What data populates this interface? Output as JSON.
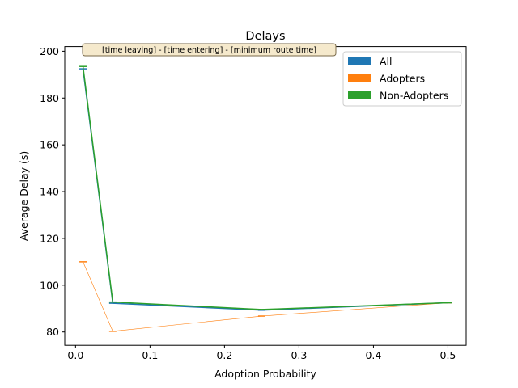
{
  "chart_data": {
    "type": "line",
    "title": "Delays",
    "xlabel": "Adoption Probability",
    "ylabel": "Average Delay (s)",
    "xlim": [
      -0.0145,
      0.5245
    ],
    "ylim": [
      74.3,
      202.0
    ],
    "xticks": [
      0.0,
      0.1,
      0.2,
      0.3,
      0.4,
      0.5
    ],
    "xtick_labels": [
      "0.0",
      "0.1",
      "0.2",
      "0.3",
      "0.4",
      "0.5"
    ],
    "yticks": [
      80,
      100,
      120,
      140,
      160,
      180,
      200
    ],
    "ytick_labels": [
      "80",
      "100",
      "120",
      "140",
      "160",
      "180",
      "200"
    ],
    "grid": false,
    "legend_position": "upper right",
    "annotation": "[time leaving] - [time entering] - [minimum route time]",
    "x": [
      0.01,
      0.05,
      0.25,
      0.5
    ],
    "series": [
      {
        "name": "All",
        "color": "#1f77b4",
        "values": [
          192.5,
          92.3,
          89.3,
          92.5
        ],
        "line_width": "thick"
      },
      {
        "name": "Adopters",
        "color": "#ff7f0e",
        "values": [
          110.0,
          80.3,
          86.8,
          92.5
        ],
        "line_width": "thin"
      },
      {
        "name": "Non-Adopters",
        "color": "#2ca02c",
        "values": [
          193.5,
          92.8,
          89.6,
          92.5
        ],
        "line_width": "thick"
      }
    ]
  }
}
